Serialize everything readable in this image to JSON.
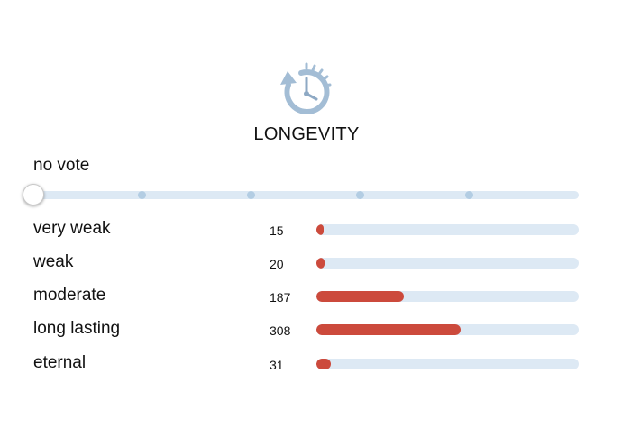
{
  "section": {
    "icon": "clock-refresh-icon",
    "title": "LONGEVITY"
  },
  "vote": {
    "current_label": "no vote",
    "levels": 6,
    "selected_index": 0
  },
  "options": [
    {
      "label": "very weak",
      "count": "15",
      "fill_fraction": 0.024
    },
    {
      "label": "weak",
      "count": "20",
      "fill_fraction": 0.032
    },
    {
      "label": "moderate",
      "count": "187",
      "fill_fraction": 0.335
    },
    {
      "label": "long lasting",
      "count": "308",
      "fill_fraction": 0.55
    },
    {
      "label": "eternal",
      "count": "31",
      "fill_fraction": 0.055
    }
  ],
  "colors": {
    "fill": "#cc4a3c",
    "track": "#dde9f4",
    "tick": "#b3cde3",
    "icon": "#a3bdd5"
  }
}
